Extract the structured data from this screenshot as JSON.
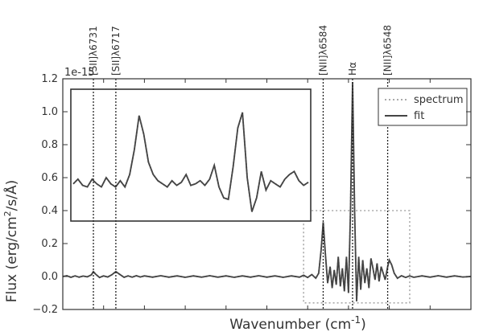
{
  "chart_data": {
    "type": "line",
    "title": "",
    "xlabel": "Wavenumber (cm",
    "xlabel_sup": "-1",
    "xlabel_close": ")",
    "ylabel": "Flux (erg/cm",
    "ylabel_sup": "2",
    "ylabel_rest": "/s/Å)",
    "y_exponent": "1e-15",
    "ylim": [
      -0.2,
      1.2
    ],
    "xlim": [
      0,
      100
    ],
    "yticks": [
      "1.2",
      "1.0",
      "0.8",
      "0.6",
      "0.4",
      "0.2",
      "0.0",
      "−0.2"
    ],
    "ytick_values": [
      1.2,
      1.0,
      0.8,
      0.6,
      0.4,
      0.2,
      0.0,
      -0.2
    ],
    "grid": false,
    "legend_position": "top-right",
    "legend": [
      {
        "name": "spectrum",
        "style": "dotted",
        "color": "#aaaaaa"
      },
      {
        "name": "fit",
        "style": "solid",
        "color": "#444444"
      }
    ],
    "emission_lines": [
      {
        "label": "[SII]λ6731",
        "x": 7.5
      },
      {
        "label": "[SII]λ6717",
        "x": 13.0
      },
      {
        "label": "[NII]λ6584",
        "x": 63.8
      },
      {
        "label": "Hα",
        "x": 71.0
      },
      {
        "label": "[NII]λ6548",
        "x": 79.6
      }
    ],
    "series": [
      {
        "name": "fit",
        "x": [
          0,
          1,
          2,
          3,
          4,
          5,
          6,
          7,
          7.5,
          8,
          9,
          10,
          11,
          12,
          13,
          14,
          15,
          16,
          17,
          18,
          19,
          20,
          22,
          24,
          26,
          28,
          30,
          32,
          34,
          36,
          38,
          40,
          42,
          44,
          46,
          48,
          50,
          52,
          54,
          56,
          58,
          59,
          60,
          61,
          62,
          62.7,
          63.3,
          63.8,
          64.3,
          64.9,
          65.5,
          66,
          66.5,
          67,
          67.5,
          68,
          68.5,
          69,
          69.5,
          70,
          70.5,
          71,
          71.5,
          72,
          72.5,
          73,
          73.5,
          74,
          74.5,
          75,
          75.5,
          76,
          76.5,
          77,
          77.5,
          78,
          78.5,
          79,
          79.6,
          80,
          80.6,
          81.2,
          82,
          83,
          84,
          85,
          86,
          88,
          90,
          92,
          94,
          96,
          98,
          100
        ],
        "y": [
          0.0,
          0.005,
          -0.005,
          0.004,
          -0.004,
          0.003,
          -0.002,
          0.01,
          0.03,
          0.015,
          -0.006,
          0.004,
          -0.003,
          0.01,
          0.03,
          0.012,
          -0.005,
          0.004,
          -0.004,
          0.005,
          -0.003,
          0.004,
          -0.004,
          0.005,
          -0.004,
          0.004,
          -0.005,
          0.004,
          -0.004,
          0.005,
          -0.004,
          0.004,
          -0.005,
          0.004,
          -0.004,
          0.005,
          -0.004,
          0.004,
          -0.005,
          0.004,
          -0.004,
          0.008,
          -0.006,
          0.012,
          -0.01,
          0.02,
          0.16,
          0.33,
          0.15,
          -0.04,
          0.06,
          -0.07,
          0.04,
          -0.05,
          0.12,
          -0.06,
          0.05,
          -0.09,
          0.12,
          -0.1,
          0.4,
          1.18,
          0.4,
          -0.15,
          0.12,
          -0.08,
          0.1,
          -0.04,
          0.05,
          -0.07,
          0.11,
          0.05,
          -0.02,
          0.08,
          -0.03,
          0.06,
          0.02,
          -0.02,
          0.06,
          0.1,
          0.07,
          0.02,
          -0.01,
          0.005,
          -0.006,
          0.004,
          -0.005,
          0.004,
          -0.004,
          0.005,
          -0.004,
          0.004,
          -0.003,
          0.0
        ]
      }
    ],
    "inset": {
      "x": [
        0,
        2,
        4,
        6,
        8,
        10,
        12,
        14,
        16,
        18,
        20,
        22,
        24,
        26,
        28,
        30,
        32,
        34,
        36,
        38,
        40,
        42,
        44,
        46,
        48,
        50,
        52,
        54,
        56,
        58,
        60,
        62,
        64,
        66,
        68,
        70,
        72,
        74,
        76,
        78,
        80,
        82,
        84,
        86,
        88,
        90,
        92,
        94,
        96,
        98,
        100
      ],
      "y": [
        0.54,
        0.57,
        0.53,
        0.52,
        0.57,
        0.54,
        0.52,
        0.58,
        0.54,
        0.52,
        0.56,
        0.52,
        0.6,
        0.76,
        0.98,
        0.86,
        0.68,
        0.6,
        0.56,
        0.54,
        0.52,
        0.56,
        0.53,
        0.55,
        0.6,
        0.53,
        0.54,
        0.56,
        0.53,
        0.57,
        0.66,
        0.52,
        0.45,
        0.44,
        0.65,
        0.9,
        1.0,
        0.58,
        0.36,
        0.45,
        0.62,
        0.5,
        0.56,
        0.54,
        0.52,
        0.57,
        0.6,
        0.62,
        0.56,
        0.53,
        0.55
      ],
      "ylim": [
        0.3,
        1.15
      ]
    }
  }
}
